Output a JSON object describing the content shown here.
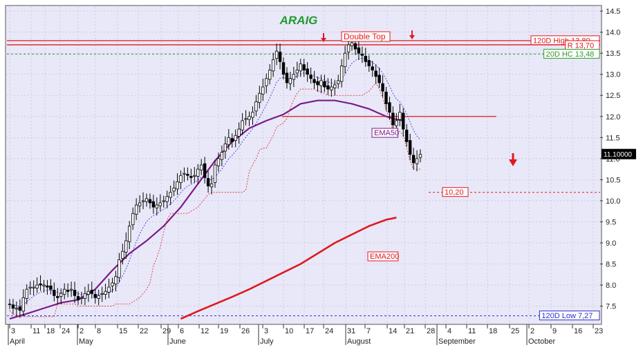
{
  "chart_data": {
    "type": "candlestick",
    "title": "ARAIG",
    "colors": {
      "background": "#e8e8f8",
      "title": "#1f9b2f",
      "ema50": "#7a1a86",
      "ema200": "#e0181c",
      "resistance": "#e0181c",
      "hc20": "#2a9a2a",
      "low120": "#2b2bd0",
      "candle": "#000000",
      "arrows": "#e0181c"
    },
    "y_axis": {
      "min": 7.1,
      "max": 14.6,
      "ticks": [
        "14.5",
        "14.0",
        "13.5",
        "13.0",
        "12.5",
        "12.0",
        "11.5",
        "11.0",
        "10.5",
        "10.0",
        "9.5",
        "9.0",
        "8.5",
        "8.0",
        "7.5"
      ],
      "position": "right"
    },
    "x_axis": {
      "day_ticks": [
        "3",
        "11",
        "18",
        "24",
        "2",
        "8",
        "15",
        "22",
        "29",
        "6",
        "12",
        "19",
        "26",
        "3",
        "10",
        "17",
        "24",
        "31",
        "7",
        "14",
        "21",
        "28",
        "4",
        "11",
        "18",
        "25",
        "2",
        "9",
        "16",
        "23"
      ],
      "month_labels": [
        "April",
        "May",
        "June",
        "July",
        "August",
        "September",
        "October"
      ]
    },
    "last_price_label": "11.10000",
    "levels": [
      {
        "label": "120D High 13,80",
        "value": 13.8,
        "style": "solid"
      },
      {
        "label": "R 13,70",
        "value": 13.7,
        "style": "solid"
      },
      {
        "label": "20D HC 13,48",
        "value": 13.48,
        "style": "dashed"
      },
      {
        "label": "120D Low 7,27",
        "value": 7.27,
        "style": "dashed"
      },
      {
        "label": "10,20",
        "value": 10.2,
        "style": "dashed"
      }
    ],
    "annotations": [
      {
        "label": "Double Top"
      },
      {
        "label": "EMA50"
      },
      {
        "label": "EMA200"
      }
    ],
    "neckline": 12.0,
    "series": [
      {
        "name": "EMA50",
        "x": [
          0,
          5,
          10,
          15,
          20,
          25,
          30,
          35,
          40,
          45,
          50,
          55,
          60,
          65,
          70,
          75,
          80,
          85,
          90,
          95,
          100,
          105,
          110,
          112,
          115
        ],
        "values": [
          7.2,
          7.32,
          7.45,
          7.58,
          7.65,
          7.9,
          8.35,
          8.75,
          9.05,
          9.4,
          9.85,
          10.4,
          10.95,
          11.4,
          11.72,
          11.9,
          12.05,
          12.3,
          12.38,
          12.38,
          12.3,
          12.18,
          12.0,
          11.95,
          11.9
        ]
      },
      {
        "name": "EMA200",
        "x": [
          50,
          55,
          60,
          65,
          70,
          75,
          80,
          85,
          90,
          95,
          100,
          105,
          110,
          113
        ],
        "values": [
          7.2,
          7.38,
          7.55,
          7.72,
          7.9,
          8.1,
          8.3,
          8.5,
          8.75,
          9.0,
          9.2,
          9.4,
          9.55,
          9.6
        ]
      }
    ],
    "candles": {
      "start_x": 0,
      "closes": [
        7.55,
        7.45,
        7.45,
        7.4,
        7.7,
        7.9,
        7.95,
        7.95,
        8.0,
        8.0,
        8.0,
        7.95,
        7.9,
        7.75,
        7.7,
        7.8,
        7.9,
        7.85,
        7.9,
        7.75,
        7.65,
        7.7,
        7.8,
        7.85,
        7.8,
        7.7,
        7.75,
        7.8,
        7.85,
        7.95,
        8.05,
        8.2,
        8.6,
        8.8,
        9.05,
        9.4,
        9.7,
        9.9,
        9.95,
        10.0,
        10.05,
        9.95,
        9.85,
        9.9,
        9.95,
        10.0,
        10.1,
        10.2,
        10.3,
        10.45,
        10.6,
        10.65,
        10.6,
        10.55,
        10.6,
        10.75,
        10.85,
        10.55,
        10.35,
        10.4,
        10.85,
        11.0,
        11.15,
        11.35,
        11.5,
        11.4,
        11.55,
        11.7,
        11.9,
        11.95,
        12.0,
        12.1,
        12.35,
        12.55,
        12.7,
        12.9,
        13.1,
        13.35,
        13.55,
        13.3,
        13.0,
        12.8,
        12.9,
        13.0,
        13.1,
        13.25,
        13.1,
        13.0,
        12.9,
        12.8,
        12.75,
        12.85,
        12.7,
        12.65,
        12.7,
        12.75,
        12.85,
        13.2,
        13.5,
        13.7,
        13.75,
        13.6,
        13.5,
        13.45,
        13.3,
        13.2,
        13.1,
        12.95,
        12.8,
        12.6,
        12.3,
        12.1,
        11.8,
        11.9,
        12.1,
        11.7,
        11.4,
        11.1,
        10.9,
        11.0,
        11.1
      ],
      "min_wicks": true
    }
  }
}
